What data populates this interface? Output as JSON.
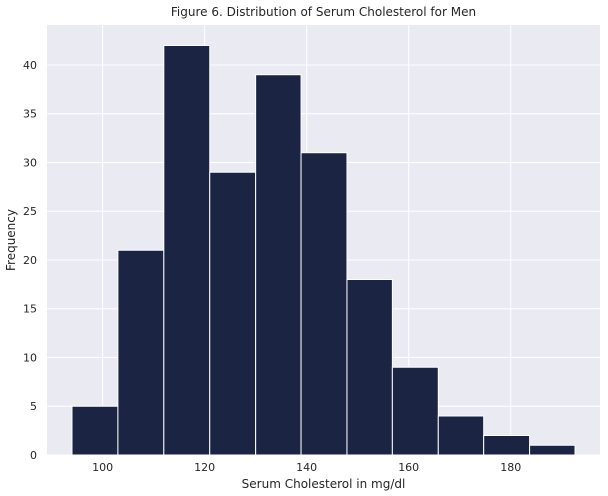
{
  "chart_data": {
    "type": "bar",
    "title": "Figure 6. Distribution of Serum Cholesterol for Men",
    "xlabel": "Serum Cholesterol in mg/dl",
    "ylabel": "Frequency",
    "bins": [
      {
        "start": 94.0,
        "end": 103.0,
        "count": 5
      },
      {
        "start": 103.0,
        "end": 112.0,
        "count": 21
      },
      {
        "start": 112.0,
        "end": 121.0,
        "count": 42
      },
      {
        "start": 121.0,
        "end": 130.0,
        "count": 29
      },
      {
        "start": 130.0,
        "end": 138.9,
        "count": 39
      },
      {
        "start": 138.9,
        "end": 147.9,
        "count": 31
      },
      {
        "start": 147.9,
        "end": 156.8,
        "count": 18
      },
      {
        "start": 156.8,
        "end": 165.8,
        "count": 9
      },
      {
        "start": 165.8,
        "end": 174.7,
        "count": 4
      },
      {
        "start": 174.7,
        "end": 183.7,
        "count": 2
      },
      {
        "start": 183.7,
        "end": 192.6,
        "count": 1
      }
    ],
    "xlim": [
      89.1,
      197.5
    ],
    "ylim": [
      0,
      44.1
    ],
    "xticks": [
      100,
      120,
      140,
      160,
      180
    ],
    "yticks": [
      0,
      5,
      10,
      15,
      20,
      25,
      30,
      35,
      40
    ],
    "grid": true,
    "legend": "none",
    "colors": {
      "background": "#EAEAF2",
      "bar": "#1B2442",
      "bar_edge": "#ffffff",
      "grid": "#ffffff"
    }
  }
}
